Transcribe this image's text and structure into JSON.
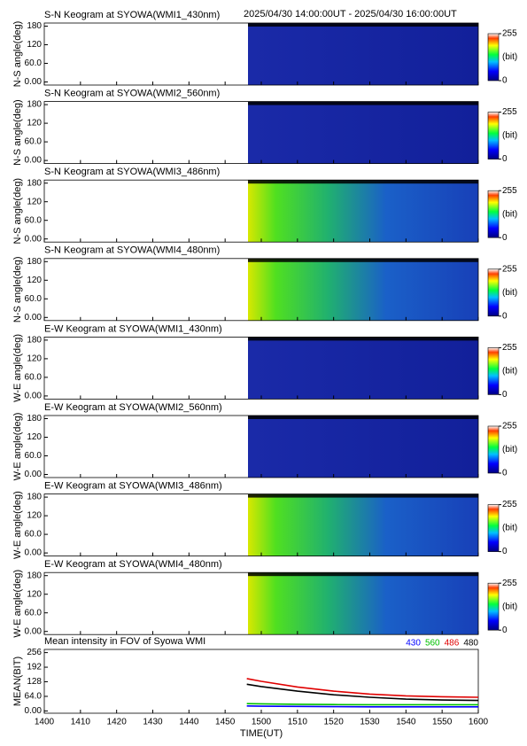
{
  "header": {
    "time_range": "2025/04/30 14:00:00UT - 2025/04/30 16:00:00UT"
  },
  "chart_data": [
    {
      "type": "keogram",
      "title": "S-N Keogram at SYOWA(WMI1_430nm)",
      "ylabel": "N-S angle(deg)",
      "style": "dark",
      "ylim": [
        -10,
        190
      ],
      "yticks": [
        {
          "value": 0,
          "label": "0.00"
        },
        {
          "value": 60,
          "label": "60.0"
        },
        120,
        180
      ],
      "xlim": [
        "1400",
        "1600"
      ],
      "xticks": [
        "1400",
        "1410",
        "1420",
        "1430",
        "1440",
        "1450",
        "1500",
        "1510",
        "1520",
        "1530",
        "1540",
        "1550",
        "1600"
      ],
      "clim": [
        0,
        255
      ],
      "cticks": [
        0,
        255
      ],
      "clabel": "(bit)"
    },
    {
      "type": "keogram",
      "title": "S-N Keogram at SYOWA(WMI2_560nm)",
      "ylabel": "N-S angle(deg)",
      "style": "dark",
      "ylim": [
        -10,
        190
      ],
      "yticks": [
        {
          "value": 0,
          "label": "0.00"
        },
        {
          "value": 60,
          "label": "60.0"
        },
        120,
        180
      ],
      "xlim": [
        "1400",
        "1600"
      ],
      "xticks": [
        "1400",
        "1410",
        "1420",
        "1430",
        "1440",
        "1450",
        "1500",
        "1510",
        "1520",
        "1530",
        "1540",
        "1550",
        "1600"
      ],
      "clim": [
        0,
        255
      ],
      "cticks": [
        0,
        255
      ],
      "clabel": "(bit)"
    },
    {
      "type": "keogram",
      "title": "S-N Keogram at SYOWA(WMI3_486nm)",
      "ylabel": "N-S angle(deg)",
      "style": "bright",
      "ylim": [
        -10,
        190
      ],
      "yticks": [
        {
          "value": 0,
          "label": "0.00"
        },
        {
          "value": 60,
          "label": "60.0"
        },
        120,
        180
      ],
      "xlim": [
        "1400",
        "1600"
      ],
      "xticks": [
        "1400",
        "1410",
        "1420",
        "1430",
        "1440",
        "1450",
        "1500",
        "1510",
        "1520",
        "1530",
        "1540",
        "1550",
        "1600"
      ],
      "clim": [
        0,
        255
      ],
      "cticks": [
        0,
        255
      ],
      "clabel": "(bit)"
    },
    {
      "type": "keogram",
      "title": "S-N Keogram at SYOWA(WMI4_480nm)",
      "ylabel": "N-S angle(deg)",
      "style": "bright",
      "ylim": [
        -10,
        190
      ],
      "yticks": [
        {
          "value": 0,
          "label": "0.00"
        },
        {
          "value": 60,
          "label": "60.0"
        },
        120,
        180
      ],
      "xlim": [
        "1400",
        "1600"
      ],
      "xticks": [
        "1400",
        "1410",
        "1420",
        "1430",
        "1440",
        "1450",
        "1500",
        "1510",
        "1520",
        "1530",
        "1540",
        "1550",
        "1600"
      ],
      "clim": [
        0,
        255
      ],
      "cticks": [
        0,
        255
      ],
      "clabel": "(bit)"
    },
    {
      "type": "keogram",
      "title": "E-W Keogram at SYOWA(WMI1_430nm)",
      "ylabel": "W-E angle(deg)",
      "style": "dark",
      "ylim": [
        -10,
        190
      ],
      "yticks": [
        {
          "value": 0,
          "label": "0.00"
        },
        {
          "value": 60,
          "label": "60.0"
        },
        120,
        180
      ],
      "xlim": [
        "1400",
        "1600"
      ],
      "xticks": [
        "1400",
        "1410",
        "1420",
        "1430",
        "1440",
        "1450",
        "1500",
        "1510",
        "1520",
        "1530",
        "1540",
        "1550",
        "1600"
      ],
      "clim": [
        0,
        255
      ],
      "cticks": [
        0,
        255
      ],
      "clabel": "(bit)"
    },
    {
      "type": "keogram",
      "title": "E-W Keogram at SYOWA(WMI2_560nm)",
      "ylabel": "W-E angle(deg)",
      "style": "dark",
      "ylim": [
        -10,
        190
      ],
      "yticks": [
        {
          "value": 0,
          "label": "0.00"
        },
        {
          "value": 60,
          "label": "60.0"
        },
        120,
        180
      ],
      "xlim": [
        "1400",
        "1600"
      ],
      "xticks": [
        "1400",
        "1410",
        "1420",
        "1430",
        "1440",
        "1450",
        "1500",
        "1510",
        "1520",
        "1530",
        "1540",
        "1550",
        "1600"
      ],
      "clim": [
        0,
        255
      ],
      "cticks": [
        0,
        255
      ],
      "clabel": "(bit)"
    },
    {
      "type": "keogram",
      "title": "E-W Keogram at SYOWA(WMI3_486nm)",
      "ylabel": "W-E angle(deg)",
      "style": "bright",
      "ylim": [
        -10,
        190
      ],
      "yticks": [
        {
          "value": 0,
          "label": "0.00"
        },
        {
          "value": 60,
          "label": "60.0"
        },
        120,
        180
      ],
      "xlim": [
        "1400",
        "1600"
      ],
      "xticks": [
        "1400",
        "1410",
        "1420",
        "1430",
        "1440",
        "1450",
        "1500",
        "1510",
        "1520",
        "1530",
        "1540",
        "1550",
        "1600"
      ],
      "clim": [
        0,
        255
      ],
      "cticks": [
        0,
        255
      ],
      "clabel": "(bit)"
    },
    {
      "type": "keogram",
      "title": "E-W Keogram at SYOWA(WMI4_480nm)",
      "ylabel": "W-E angle(deg)",
      "style": "bright",
      "ylim": [
        -10,
        190
      ],
      "yticks": [
        {
          "value": 0,
          "label": "0.00"
        },
        {
          "value": 60,
          "label": "60.0"
        },
        120,
        180
      ],
      "xlim": [
        "1400",
        "1600"
      ],
      "xticks": [
        "1400",
        "1410",
        "1420",
        "1430",
        "1440",
        "1450",
        "1500",
        "1510",
        "1520",
        "1530",
        "1540",
        "1550",
        "1600"
      ],
      "clim": [
        0,
        255
      ],
      "cticks": [
        0,
        255
      ],
      "clabel": "(bit)"
    },
    {
      "type": "line",
      "title": "Mean intensity in FOV of Syowa WMI",
      "ylabel": "MEAN(BIT)",
      "xlabel": "TIME(UT)",
      "ylim": [
        -10,
        270
      ],
      "yticks": [
        {
          "value": 0,
          "label": "0.00"
        },
        {
          "value": 64,
          "label": "64.0"
        },
        128,
        192,
        256
      ],
      "xlim": [
        "1400",
        "1600"
      ],
      "xticks": [
        "1400",
        "1410",
        "1420",
        "1430",
        "1440",
        "1450",
        "1500",
        "1510",
        "1520",
        "1530",
        "1540",
        "1550",
        "1600"
      ],
      "x": [
        "1456",
        "1500",
        "1510",
        "1520",
        "1530",
        "1540",
        "1550",
        "1600"
      ],
      "series": [
        {
          "name": "430",
          "color": "#0000ff",
          "values": [
            22,
            21,
            20,
            19,
            18,
            18,
            18,
            18
          ]
        },
        {
          "name": "560",
          "color": "#00c000",
          "values": [
            32,
            31,
            29,
            28,
            27,
            27,
            27,
            27
          ]
        },
        {
          "name": "486",
          "color": "#e00000",
          "values": [
            142,
            130,
            105,
            87,
            74,
            66,
            62,
            60
          ]
        },
        {
          "name": "480",
          "color": "#000000",
          "values": [
            117,
            107,
            87,
            71,
            60,
            52,
            48,
            46
          ]
        }
      ]
    }
  ]
}
